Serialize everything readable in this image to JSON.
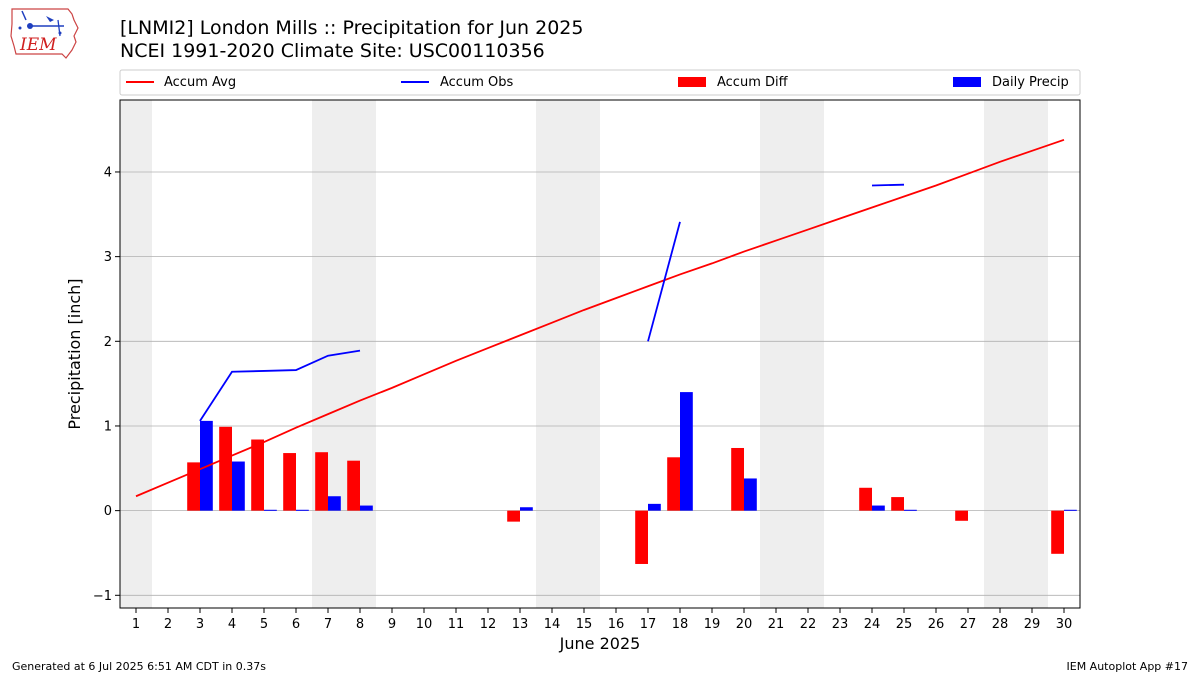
{
  "header": {
    "title": "[LNMI2] London Mills :: Precipitation for Jun 2025",
    "subtitle": "NCEI 1991-2020 Climate Site: USC00110356",
    "logo_text": "IEM"
  },
  "footer": {
    "generated": "Generated at 6 Jul 2025 6:51 AM CDT in 0.37s",
    "app": "IEM Autoplot App #17"
  },
  "colors": {
    "avg": "#ff0000",
    "obs": "#0000ff",
    "diff": "#ff0000",
    "daily": "#0000ff",
    "weekend": "#eeeeee",
    "grid": "#b0b0b0"
  },
  "chart_data": {
    "type": "bar",
    "xlabel": "June 2025",
    "ylabel": "Precipitation [inch]",
    "xlim": [
      0.5,
      30.5
    ],
    "ylim": [
      -1.15,
      4.85
    ],
    "yticks": [
      -1,
      0,
      1,
      2,
      3,
      4
    ],
    "days": [
      1,
      2,
      3,
      4,
      5,
      6,
      7,
      8,
      9,
      10,
      11,
      12,
      13,
      14,
      15,
      16,
      17,
      18,
      19,
      20,
      21,
      22,
      23,
      24,
      25,
      26,
      27,
      28,
      29,
      30
    ],
    "weekend_bands": [
      [
        0.5,
        1.5
      ],
      [
        6.5,
        8.5
      ],
      [
        13.5,
        15.5
      ],
      [
        20.5,
        22.5
      ],
      [
        27.5,
        29.5
      ]
    ],
    "legend": [
      "Accum Avg",
      "Accum Obs",
      "Accum Diff",
      "Daily Precip"
    ],
    "accum_avg": [
      0.17,
      0.33,
      0.49,
      0.65,
      0.81,
      0.98,
      1.14,
      1.3,
      1.45,
      1.61,
      1.77,
      1.92,
      2.07,
      2.22,
      2.37,
      2.51,
      2.65,
      2.79,
      2.92,
      3.06,
      3.19,
      3.32,
      3.45,
      3.58,
      3.71,
      3.84,
      3.98,
      4.12,
      4.25,
      4.38
    ],
    "accum_obs": [
      null,
      null,
      1.06,
      1.64,
      1.65,
      1.66,
      1.83,
      1.89,
      null,
      null,
      null,
      null,
      null,
      null,
      null,
      null,
      2.0,
      3.41,
      null,
      null,
      null,
      null,
      null,
      3.84,
      3.85,
      null,
      null,
      null,
      null,
      null
    ],
    "accum_diff": [
      0,
      0,
      0.57,
      0.99,
      0.84,
      0.68,
      0.69,
      0.59,
      0,
      0,
      0,
      0,
      -0.13,
      0,
      0,
      0,
      -0.63,
      0.63,
      0,
      0.74,
      0,
      0,
      0,
      0.27,
      0.16,
      0,
      -0.12,
      0,
      0,
      -0.51
    ],
    "daily_precip": [
      0,
      0,
      1.06,
      0.58,
      0.01,
      0.01,
      0.17,
      0.06,
      0,
      0,
      0,
      0,
      0.04,
      0,
      0,
      0,
      0.08,
      1.4,
      0,
      0.38,
      0,
      0,
      0,
      0.06,
      0.01,
      0,
      0,
      0,
      0,
      0.01
    ]
  }
}
